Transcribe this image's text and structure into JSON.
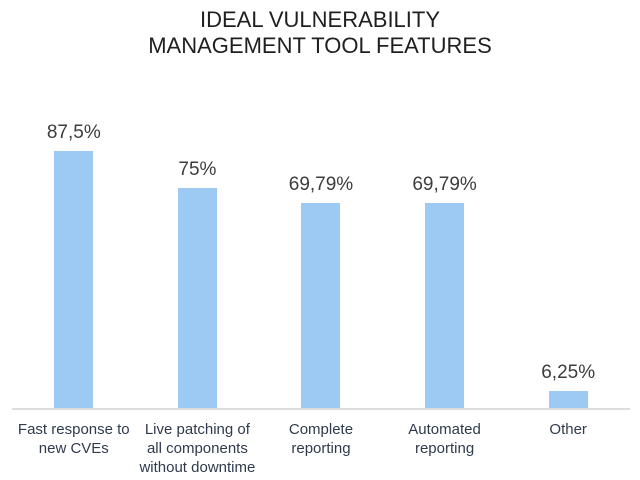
{
  "title": {
    "line1": "IDEAL VULNERABILITY",
    "line2": "MANAGEMENT TOOL FEATURES"
  },
  "chart_data": {
    "type": "bar",
    "title": "IDEAL VULNERABILITY MANAGEMENT TOOL FEATURES",
    "categories": [
      "Fast response to new CVEs",
      "Live patching of all components without downtime",
      "Complete reporting",
      "Automated reporting",
      "Other"
    ],
    "values": [
      87.5,
      75,
      69.79,
      69.79,
      6.25
    ],
    "value_labels": [
      "87,5%",
      "75%",
      "69,79%",
      "69,79%",
      "6,25%"
    ],
    "xlabel": "",
    "ylabel": "",
    "ylim": [
      0,
      100
    ],
    "grid": false,
    "legend": false,
    "y_axis_visible": false,
    "bar_color": "#9DCAF2",
    "axis_line_color": "#DDDDDD",
    "value_label_color": "#3D3D3D",
    "category_label_color": "#2F3B4C",
    "title_color": "#1F1F1F",
    "background_color": "#FFFFFF"
  }
}
